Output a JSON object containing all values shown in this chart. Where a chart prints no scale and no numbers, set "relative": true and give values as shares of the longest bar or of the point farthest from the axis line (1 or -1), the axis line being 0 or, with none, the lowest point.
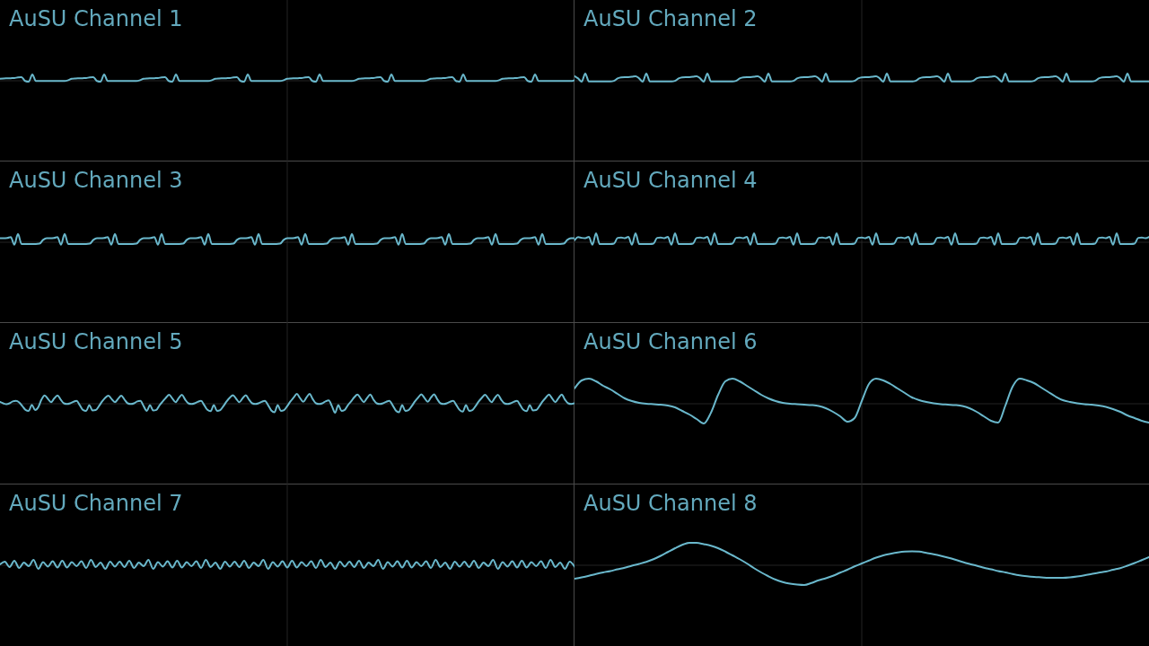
{
  "chart_data": [
    {
      "type": "line",
      "title": "AuSU Channel 1",
      "relative": true,
      "grid": true,
      "color": "#6ab8cc",
      "categories": [
        null,
        null,
        null,
        null,
        null,
        null,
        null,
        null,
        null,
        null,
        null,
        null,
        null,
        null,
        null,
        null,
        null,
        null,
        null,
        null,
        null,
        null,
        null,
        null,
        null,
        null,
        null,
        null,
        null,
        null,
        null,
        null,
        null,
        null,
        null,
        null,
        null,
        null,
        null,
        null,
        null,
        null,
        null,
        null,
        null,
        null,
        null,
        null,
        null,
        null,
        null,
        null,
        null,
        null,
        null,
        null,
        null,
        null,
        null,
        null,
        null,
        null,
        null,
        null,
        null,
        null,
        null,
        null,
        null,
        null,
        null,
        null,
        null,
        null,
        null,
        null,
        null,
        null,
        null,
        null,
        null,
        null,
        null,
        null,
        null,
        null,
        null,
        null,
        null,
        null,
        null,
        null,
        null,
        null,
        null,
        null,
        null,
        null,
        null,
        null,
        null,
        null,
        null,
        null,
        null,
        null,
        null,
        null,
        null,
        null,
        null,
        null,
        null,
        null,
        null,
        null,
        null,
        null,
        null,
        null,
        null,
        null,
        null,
        null,
        null,
        null,
        null,
        null,
        null,
        null,
        null,
        null,
        null,
        null,
        null,
        null,
        null,
        null,
        null,
        null,
        null,
        null,
        null,
        null,
        null,
        null,
        null,
        null,
        null,
        null,
        null,
        null,
        null,
        null,
        null,
        null,
        null,
        null,
        null,
        null,
        null
      ],
      "values": [
        0.4,
        0.44,
        0.46,
        0.48,
        0.5,
        0.6,
        0.62,
        0.1,
        0,
        1,
        0.08,
        0.08,
        0.08,
        0.08,
        0.08,
        0.08,
        0.08,
        0.08,
        0.08,
        0.2,
        0.4,
        0.44,
        0.46,
        0.48,
        0.5,
        0.6,
        0.62,
        0.1,
        0,
        1,
        0.08,
        0.08,
        0.08,
        0.08,
        0.08,
        0.08,
        0.08,
        0.08,
        0.08,
        0.2,
        0.4,
        0.44,
        0.46,
        0.48,
        0.5,
        0.6,
        0.62,
        0.1,
        0,
        1,
        0.08,
        0.08,
        0.08,
        0.08,
        0.08,
        0.08,
        0.08,
        0.08,
        0.08,
        0.2,
        0.4,
        0.44,
        0.46,
        0.48,
        0.5,
        0.6,
        0.62,
        0.1,
        0,
        1,
        0.08,
        0.08,
        0.08,
        0.08,
        0.08,
        0.08,
        0.08,
        0.08,
        0.08,
        0.2,
        0.4,
        0.44,
        0.46,
        0.48,
        0.5,
        0.6,
        0.62,
        0.1,
        0,
        1,
        0.08,
        0.08,
        0.08,
        0.08,
        0.08,
        0.08,
        0.08,
        0.08,
        0.08,
        0.2,
        0.4,
        0.44,
        0.46,
        0.48,
        0.5,
        0.6,
        0.62,
        0.1,
        0,
        1,
        0.08,
        0.08,
        0.08,
        0.08,
        0.08,
        0.08,
        0.08,
        0.08,
        0.08,
        0.2,
        0.4,
        0.44,
        0.46,
        0.48,
        0.5,
        0.6,
        0.62,
        0.1,
        0,
        1,
        0.08,
        0.08,
        0.08,
        0.08,
        0.08,
        0.08,
        0.08,
        0.08,
        0.08,
        0.2,
        0.4,
        0.44,
        0.46,
        0.48,
        0.5,
        0.6,
        0.62,
        0.1,
        0,
        1,
        0.08,
        0.08,
        0.08,
        0.08,
        0.08,
        0.08,
        0.08,
        0.08,
        0.08,
        0.08,
        0.2
      ]
    },
    {
      "type": "line",
      "title": "AuSU Channel 2",
      "relative": true,
      "grid": true,
      "color": "#6ab8cc",
      "categories": [
        null,
        null,
        null,
        null,
        null,
        null,
        null,
        null,
        null,
        null,
        null,
        null,
        null,
        null,
        null,
        null,
        null,
        null,
        null,
        null,
        null,
        null,
        null,
        null,
        null,
        null,
        null,
        null,
        null,
        null,
        null,
        null,
        null,
        null,
        null,
        null,
        null,
        null,
        null,
        null,
        null,
        null,
        null,
        null,
        null,
        null,
        null,
        null,
        null,
        null,
        null,
        null,
        null,
        null,
        null,
        null,
        null,
        null,
        null,
        null,
        null,
        null,
        null,
        null,
        null,
        null,
        null,
        null,
        null,
        null,
        null,
        null,
        null,
        null,
        null,
        null,
        null,
        null,
        null,
        null,
        null,
        null,
        null,
        null,
        null,
        null,
        null,
        null,
        null,
        null,
        null,
        null,
        null,
        null,
        null,
        null,
        null,
        null,
        null,
        null,
        null,
        null,
        null,
        null,
        null,
        null,
        null,
        null,
        null,
        null,
        null,
        null,
        null,
        null,
        null,
        null,
        null,
        null,
        null,
        null,
        null,
        null,
        null,
        null,
        null,
        null,
        null,
        null,
        null,
        null,
        null,
        null,
        null,
        null,
        null,
        null,
        null,
        null,
        null,
        null,
        null,
        null,
        null,
        null,
        null,
        null,
        null,
        null,
        null,
        null,
        null,
        null,
        null,
        null,
        null,
        null,
        null,
        null,
        null,
        null,
        null
      ],
      "values": [
        0.68,
        0.4,
        0,
        1,
        0.02,
        0.02,
        0.02,
        0.02,
        0.02,
        0.02,
        0.02,
        0.1,
        0.4,
        0.54,
        0.56,
        0.56,
        0.6,
        0.68,
        0.4,
        0,
        1,
        0.02,
        0.02,
        0.02,
        0.02,
        0.02,
        0.02,
        0.02,
        0.1,
        0.4,
        0.54,
        0.56,
        0.56,
        0.6,
        0.68,
        0.4,
        0,
        1,
        0.02,
        0.02,
        0.02,
        0.02,
        0.02,
        0.02,
        0.02,
        0.1,
        0.4,
        0.54,
        0.56,
        0.56,
        0.6,
        0.68,
        0.4,
        0,
        1,
        0.02,
        0.02,
        0.02,
        0.02,
        0.02,
        0.02,
        0.1,
        0.4,
        0.54,
        0.56,
        0.56,
        0.6,
        0.68,
        0.4,
        0,
        1,
        0.02,
        0.02,
        0.02,
        0.02,
        0.02,
        0.02,
        0.02,
        0.1,
        0.4,
        0.54,
        0.56,
        0.56,
        0.6,
        0.68,
        0.4,
        0,
        1,
        0.02,
        0.02,
        0.02,
        0.02,
        0.02,
        0.02,
        0.02,
        0.1,
        0.4,
        0.54,
        0.56,
        0.56,
        0.6,
        0.68,
        0.4,
        0,
        1,
        0.02,
        0.02,
        0.02,
        0.02,
        0.02,
        0.02,
        0.1,
        0.4,
        0.54,
        0.56,
        0.56,
        0.6,
        0.68,
        0.4,
        0,
        1,
        0.02,
        0.02,
        0.02,
        0.02,
        0.02,
        0.02,
        0.02,
        0.1,
        0.4,
        0.54,
        0.56,
        0.56,
        0.6,
        0.68,
        0.4,
        0,
        1,
        0.02,
        0.02,
        0.02,
        0.02,
        0.02,
        0.02,
        0.02,
        0.1,
        0.4,
        0.54,
        0.56,
        0.56,
        0.6,
        0.68,
        0.4,
        0,
        1,
        0.02,
        0.02,
        0.02,
        0.02,
        0.02,
        0.02
      ]
    },
    {
      "type": "line",
      "title": "AuSU Channel 3",
      "relative": true,
      "grid": true,
      "color": "#6ab8cc",
      "categories": [
        null,
        null,
        null,
        null,
        null,
        null,
        null,
        null,
        null,
        null,
        null,
        null,
        null,
        null,
        null,
        null,
        null,
        null,
        null,
        null,
        null,
        null,
        null,
        null,
        null,
        null,
        null,
        null,
        null,
        null,
        null,
        null,
        null,
        null,
        null,
        null,
        null,
        null,
        null,
        null,
        null,
        null,
        null,
        null,
        null,
        null,
        null,
        null,
        null,
        null,
        null,
        null,
        null,
        null,
        null,
        null,
        null,
        null,
        null,
        null,
        null,
        null,
        null,
        null,
        null,
        null,
        null,
        null,
        null,
        null,
        null,
        null,
        null,
        null,
        null,
        null,
        null,
        null,
        null,
        null,
        null,
        null,
        null,
        null,
        null,
        null,
        null,
        null,
        null,
        null,
        null,
        null,
        null,
        null,
        null,
        null,
        null,
        null,
        null,
        null,
        null,
        null,
        null,
        null,
        null,
        null,
        null,
        null,
        null,
        null,
        null,
        null,
        null,
        null,
        null,
        null,
        null,
        null,
        null,
        null,
        null,
        null,
        null,
        null,
        null,
        null,
        null,
        null,
        null,
        null,
        null,
        null,
        null,
        null,
        null,
        null,
        null,
        null,
        null,
        null,
        null,
        null,
        null,
        null,
        null,
        null,
        null,
        null,
        null,
        null,
        null,
        null,
        null,
        null,
        null,
        null,
        null,
        null,
        null,
        null,
        null
      ],
      "values": [
        0.6,
        0.6,
        0.62,
        0.72,
        0,
        1,
        0.07,
        0.07,
        0.07,
        0.07,
        0.07,
        0.1,
        0.45,
        0.6,
        0.6,
        0.62,
        0.72,
        0,
        1,
        0.07,
        0.07,
        0.07,
        0.07,
        0.07,
        0.07,
        0.1,
        0.45,
        0.6,
        0.6,
        0.62,
        0.72,
        0,
        1,
        0.07,
        0.07,
        0.07,
        0.07,
        0.07,
        0.1,
        0.45,
        0.6,
        0.6,
        0.62,
        0.72,
        0,
        1,
        0.07,
        0.07,
        0.07,
        0.07,
        0.07,
        0.1,
        0.45,
        0.6,
        0.6,
        0.62,
        0.72,
        0,
        1,
        0.07,
        0.07,
        0.07,
        0.07,
        0.07,
        0.07,
        0.1,
        0.45,
        0.6,
        0.6,
        0.62,
        0.72,
        0,
        1,
        0.07,
        0.07,
        0.07,
        0.07,
        0.07,
        0.1,
        0.45,
        0.6,
        0.6,
        0.62,
        0.72,
        0,
        1,
        0.07,
        0.07,
        0.07,
        0.07,
        0.07,
        0.1,
        0.45,
        0.6,
        0.6,
        0.62,
        0.72,
        0,
        1,
        0.07,
        0.07,
        0.07,
        0.07,
        0.07,
        0.07,
        0.1,
        0.45,
        0.6,
        0.6,
        0.62,
        0.72,
        0,
        1,
        0.07,
        0.07,
        0.07,
        0.07,
        0.07,
        0.1,
        0.45,
        0.6,
        0.6,
        0.62,
        0.72,
        0,
        1,
        0.07,
        0.07,
        0.07,
        0.07,
        0.07,
        0.1,
        0.45,
        0.6,
        0.6,
        0.62,
        0.72,
        0,
        1,
        0.07,
        0.07,
        0.07,
        0.07,
        0.07,
        0.1,
        0.45,
        0.6,
        0.6,
        0.62,
        0.72,
        0,
        1,
        0.07,
        0.07,
        0.07,
        0.07,
        0.07,
        0.1,
        0.45,
        0.6,
        0.6
      ]
    },
    {
      "type": "line",
      "title": "AuSU Channel 4",
      "relative": true,
      "grid": true,
      "color": "#6ab8cc",
      "categories": [
        null,
        null,
        null,
        null,
        null,
        null,
        null,
        null,
        null,
        null,
        null,
        null,
        null,
        null,
        null,
        null,
        null,
        null,
        null,
        null,
        null,
        null,
        null,
        null,
        null,
        null,
        null,
        null,
        null,
        null,
        null,
        null,
        null,
        null,
        null,
        null,
        null,
        null,
        null,
        null,
        null,
        null,
        null,
        null,
        null,
        null,
        null,
        null,
        null,
        null,
        null,
        null,
        null,
        null,
        null,
        null,
        null,
        null,
        null,
        null,
        null,
        null,
        null,
        null,
        null,
        null,
        null,
        null,
        null,
        null,
        null,
        null,
        null,
        null,
        null,
        null,
        null,
        null,
        null,
        null,
        null,
        null,
        null,
        null,
        null,
        null,
        null,
        null,
        null,
        null,
        null,
        null,
        null,
        null,
        null,
        null,
        null,
        null,
        null,
        null,
        null,
        null,
        null,
        null,
        null,
        null,
        null,
        null,
        null,
        null,
        null,
        null,
        null,
        null,
        null,
        null,
        null,
        null,
        null,
        null,
        null,
        null,
        null,
        null,
        null,
        null,
        null,
        null,
        null,
        null,
        null,
        null,
        null,
        null,
        null,
        null,
        null,
        null,
        null,
        null,
        null,
        null,
        null,
        null,
        null,
        null,
        null,
        null,
        null,
        null,
        null,
        null,
        null,
        null,
        null,
        null,
        null,
        null,
        null,
        null,
        null
      ],
      "values": [
        0.38,
        0.66,
        0.6,
        0.58,
        0.68,
        0,
        1,
        0.06,
        0.06,
        0.06,
        0.06,
        0.1,
        0.6,
        0.62,
        0.58,
        0.68,
        0,
        1,
        0.06,
        0.06,
        0.06,
        0.06,
        0.1,
        0.6,
        0.62,
        0.58,
        0.68,
        0,
        1,
        0.06,
        0.06,
        0.06,
        0.06,
        0.1,
        0.6,
        0.62,
        0.58,
        0.68,
        0,
        1,
        0.06,
        0.06,
        0.06,
        0.06,
        0.1,
        0.6,
        0.62,
        0.58,
        0.68,
        0,
        1,
        0.06,
        0.06,
        0.06,
        0.06,
        0.06,
        0.1,
        0.6,
        0.62,
        0.58,
        0.68,
        0,
        1,
        0.06,
        0.06,
        0.06,
        0.06,
        0.1,
        0.6,
        0.62,
        0.58,
        0.68,
        0,
        1,
        0.06,
        0.06,
        0.06,
        0.06,
        0.1,
        0.6,
        0.62,
        0.58,
        0.68,
        0,
        1,
        0.06,
        0.06,
        0.06,
        0.06,
        0.1,
        0.6,
        0.62,
        0.58,
        0.68,
        0,
        1,
        0.06,
        0.06,
        0.06,
        0.06,
        0.1,
        0.6,
        0.62,
        0.58,
        0.68,
        0,
        1,
        0.06,
        0.06,
        0.06,
        0.06,
        0.06,
        0.1,
        0.6,
        0.62,
        0.58,
        0.68,
        0,
        1,
        0.06,
        0.06,
        0.06,
        0.06,
        0.1,
        0.6,
        0.62,
        0.58,
        0.68,
        0,
        1,
        0.06,
        0.06,
        0.06,
        0.06,
        0.1,
        0.6,
        0.62,
        0.58,
        0.68,
        0,
        1,
        0.06,
        0.06,
        0.06,
        0.06,
        0.1,
        0.6,
        0.62,
        0.58,
        0.68,
        0,
        1,
        0.06,
        0.06,
        0.06,
        0.06,
        0.1,
        0.6,
        0.62,
        0.58,
        0.68
      ]
    },
    {
      "type": "line",
      "title": "AuSU Channel 5",
      "relative": true,
      "grid": true,
      "color": "#6ab8cc",
      "categories": [
        null,
        null,
        null,
        null,
        null,
        null,
        null,
        null,
        null,
        null,
        null,
        null,
        null,
        null,
        null,
        null,
        null,
        null,
        null,
        null,
        null,
        null,
        null,
        null,
        null,
        null,
        null,
        null,
        null,
        null,
        null,
        null,
        null,
        null,
        null,
        null,
        null,
        null,
        null,
        null,
        null,
        null,
        null,
        null,
        null,
        null,
        null,
        null,
        null,
        null,
        null,
        null,
        null,
        null,
        null,
        null,
        null,
        null,
        null,
        null,
        null,
        null,
        null,
        null,
        null,
        null,
        null,
        null,
        null,
        null,
        null,
        null,
        null,
        null,
        null,
        null,
        null,
        null,
        null,
        null,
        null,
        null,
        null,
        null,
        null,
        null,
        null,
        null,
        null,
        null,
        null,
        null,
        null,
        null,
        null,
        null,
        null,
        null,
        null,
        null,
        null,
        null,
        null,
        null,
        null,
        null,
        null,
        null,
        null,
        null,
        null,
        null,
        null,
        null,
        null,
        null,
        null,
        null,
        null,
        null,
        null,
        null,
        null,
        null,
        null,
        null,
        null,
        null,
        null,
        null,
        null,
        null,
        null,
        null,
        null,
        null,
        null,
        null,
        null,
        null,
        null,
        null,
        null,
        null,
        null,
        null,
        null,
        null,
        null,
        null,
        null,
        null,
        null,
        null,
        null,
        null,
        null,
        null,
        null,
        null,
        null,
        null,
        null,
        null,
        null,
        null,
        null,
        null,
        null,
        null,
        null,
        null,
        null,
        null,
        null,
        null,
        null,
        null,
        null,
        null,
        null
      ],
      "values": [
        0.57,
        0.5,
        0.45,
        0.5,
        0.6,
        0.63,
        0.55,
        0.35,
        0.15,
        0.1,
        0.42,
        0.14,
        0.3,
        0.7,
        0.92,
        0.74,
        0.56,
        0.76,
        0.92,
        0.7,
        0.5,
        0.46,
        0.5,
        0.58,
        0.63,
        0.4,
        0.15,
        0.1,
        0.4,
        0.12,
        0.14,
        0.35,
        0.6,
        0.8,
        0.9,
        0.72,
        0.56,
        0.74,
        0.9,
        0.7,
        0.5,
        0.46,
        0.5,
        0.6,
        0.63,
        0.35,
        0.1,
        0.4,
        0.12,
        0.15,
        0.4,
        0.6,
        0.8,
        0.95,
        0.76,
        0.56,
        0.78,
        0.95,
        0.7,
        0.5,
        0.46,
        0.5,
        0.58,
        0.63,
        0.4,
        0.15,
        0.08,
        0.4,
        0.1,
        0.14,
        0.35,
        0.6,
        0.8,
        0.93,
        0.74,
        0.56,
        0.76,
        0.93,
        0.7,
        0.5,
        0.46,
        0.5,
        0.58,
        0.63,
        0.4,
        0.12,
        0.02,
        0.4,
        0.1,
        0.14,
        0.35,
        0.6,
        0.8,
        1,
        0.78,
        0.58,
        0.8,
        1,
        0.72,
        0.5,
        0.46,
        0.5,
        0.6,
        0.65,
        0.35,
        0,
        0.4,
        0.1,
        0.15,
        0.4,
        0.6,
        0.82,
        0.96,
        0.76,
        0.56,
        0.78,
        0.96,
        0.7,
        0.5,
        0.46,
        0.5,
        0.58,
        0.63,
        0.4,
        0.12,
        0.02,
        0.4,
        0.1,
        0.14,
        0.35,
        0.6,
        0.8,
        0.98,
        0.78,
        0.58,
        0.8,
        0.98,
        0.72,
        0.5,
        0.46,
        0.5,
        0.58,
        0.63,
        0.4,
        0.15,
        0.06,
        0.4,
        0.1,
        0.14,
        0.35,
        0.6,
        0.8,
        0.95,
        0.76,
        0.56,
        0.78,
        0.95,
        0.7,
        0.5,
        0.46,
        0.5,
        0.58,
        0.63,
        0.4,
        0.15,
        0.08,
        0.4,
        0.12,
        0.14,
        0.35,
        0.6,
        0.8,
        0.97,
        0.76,
        0.56,
        0.78,
        0.97,
        0.7,
        0.5,
        0.46,
        0.5
      ]
    },
    {
      "type": "line",
      "title": "AuSU Channel 6",
      "relative": true,
      "grid": true,
      "color": "#6ab8cc",
      "categories": [
        null,
        null,
        null,
        null,
        null,
        null,
        null,
        null,
        null,
        null,
        null,
        null,
        null,
        null,
        null,
        null,
        null,
        null,
        null,
        null,
        null,
        null,
        null,
        null,
        null,
        null,
        null,
        null,
        null,
        null,
        null,
        null,
        null,
        null,
        null,
        null,
        null,
        null,
        null,
        null,
        null,
        null,
        null,
        null,
        null,
        null,
        null,
        null,
        null,
        null,
        null,
        null,
        null,
        null,
        null,
        null,
        null,
        null,
        null,
        null,
        null,
        null,
        null,
        null,
        null,
        null,
        null,
        null,
        null,
        null,
        null,
        null,
        null,
        null,
        null,
        null,
        null,
        null,
        null,
        null,
        null
      ],
      "values": [
        0.78,
        0.96,
        1,
        0.94,
        0.84,
        0.76,
        0.66,
        0.56,
        0.5,
        0.46,
        0.44,
        0.43,
        0.42,
        0.4,
        0.36,
        0.28,
        0.2,
        0.1,
        0,
        0.24,
        0.64,
        0.94,
        1,
        0.94,
        0.84,
        0.74,
        0.64,
        0.56,
        0.5,
        0.46,
        0.44,
        0.43,
        0.42,
        0.41,
        0.39,
        0.34,
        0.26,
        0.16,
        0.04,
        0.12,
        0.5,
        0.88,
        1,
        0.96,
        0.88,
        0.78,
        0.68,
        0.58,
        0.52,
        0.48,
        0.45,
        0.43,
        0.42,
        0.41,
        0.39,
        0.34,
        0.26,
        0.16,
        0.06,
        0.02,
        0.4,
        0.82,
        1,
        0.96,
        0.9,
        0.8,
        0.7,
        0.6,
        0.52,
        0.48,
        0.45,
        0.43,
        0.42,
        0.4,
        0.37,
        0.32,
        0.26,
        0.18,
        0.12,
        0.06,
        0.02
      ]
    },
    {
      "type": "line",
      "title": "AuSU Channel 7",
      "relative": true,
      "grid": true,
      "color": "#6ab8cc",
      "categories": [
        null,
        null,
        null,
        null,
        null,
        null,
        null,
        null,
        null,
        null,
        null,
        null,
        null,
        null,
        null,
        null,
        null,
        null,
        null,
        null,
        null,
        null,
        null,
        null,
        null,
        null,
        null,
        null,
        null,
        null,
        null,
        null,
        null,
        null,
        null,
        null,
        null,
        null,
        null,
        null,
        null,
        null,
        null,
        null,
        null,
        null,
        null,
        null,
        null,
        null,
        null,
        null,
        null,
        null,
        null,
        null,
        null,
        null,
        null,
        null,
        null,
        null,
        null,
        null,
        null,
        null,
        null,
        null,
        null,
        null,
        null,
        null,
        null,
        null,
        null,
        null,
        null,
        null,
        null,
        null,
        null,
        null,
        null,
        null,
        null,
        null,
        null,
        null,
        null,
        null,
        null,
        null,
        null,
        null,
        null,
        null,
        null,
        null,
        null,
        null,
        null,
        null,
        null,
        null,
        null,
        null,
        null,
        null,
        null,
        null,
        null,
        null,
        null,
        null,
        null,
        null,
        null,
        null,
        null,
        null,
        null
      ],
      "values": [
        0.5,
        0.8,
        0.2,
        0.9,
        0.1,
        0.7,
        0.3,
        1,
        0,
        0.75,
        0.25,
        0.85,
        0.15,
        0.9,
        0.15,
        0.75,
        0.3,
        0.85,
        0.1,
        1,
        0.2,
        0.7,
        0,
        0.8,
        0.25,
        0.8,
        0.2,
        0.9,
        0.1,
        0.7,
        0.3,
        1,
        0,
        0.75,
        0.25,
        0.85,
        0.15,
        0.9,
        0.15,
        0.75,
        0.3,
        0.85,
        0.1,
        1,
        0.2,
        0.7,
        0,
        0.8,
        0.25,
        0.8,
        0.2,
        0.9,
        0.1,
        0.7,
        0.3,
        1,
        0,
        0.75,
        0.25,
        0.85,
        0.15,
        0.9,
        0.15,
        0.75,
        0.3,
        0.85,
        0.1,
        1,
        0.2,
        0.7,
        0,
        0.8,
        0.25,
        0.8,
        0.2,
        0.9,
        0.1,
        0.7,
        0.3,
        1,
        0,
        0.75,
        0.25,
        0.85,
        0.15,
        0.9,
        0.15,
        0.75,
        0.3,
        0.85,
        0.1,
        1,
        0.2,
        0.7,
        0,
        0.8,
        0.25,
        0.8,
        0.2,
        0.9,
        0.1,
        0.7,
        0.3,
        1,
        0,
        0.75,
        0.25,
        0.85,
        0.15,
        0.9,
        0.15,
        0.75,
        0.3,
        0.85,
        0.1,
        1,
        0.2,
        0.7,
        0,
        0.8,
        0.25
      ]
    },
    {
      "type": "line",
      "title": "AuSU Channel 8",
      "relative": true,
      "grid": true,
      "color": "#6ab8cc",
      "categories": [
        null,
        null,
        null,
        null,
        null,
        null,
        null,
        null,
        null,
        null,
        null,
        null,
        null,
        null,
        null,
        null,
        null,
        null,
        null,
        null,
        null,
        null,
        null,
        null,
        null,
        null,
        null,
        null,
        null,
        null,
        null,
        null,
        null,
        null,
        null,
        null,
        null,
        null,
        null,
        null,
        null,
        null,
        null,
        null,
        null,
        null,
        null,
        null,
        null,
        null,
        null,
        null,
        null,
        null,
        null,
        null,
        null,
        null,
        null,
        null,
        null,
        null,
        null,
        null,
        null,
        null,
        null,
        null,
        null,
        null,
        null,
        null,
        null,
        null,
        null,
        null,
        null,
        null,
        null,
        null,
        null
      ],
      "values": [
        -0.6,
        -0.54,
        -0.47,
        -0.39,
        -0.32,
        -0.26,
        -0.18,
        -0.11,
        -0.02,
        0.06,
        0.15,
        0.27,
        0.42,
        0.59,
        0.76,
        0.91,
        1,
        1,
        0.94,
        0.87,
        0.76,
        0.61,
        0.44,
        0.27,
        0.08,
        -0.13,
        -0.32,
        -0.49,
        -0.64,
        -0.75,
        -0.82,
        -0.86,
        -0.88,
        -0.79,
        -0.67,
        -0.58,
        -0.47,
        -0.33,
        -0.2,
        -0.05,
        0.08,
        0.21,
        0.34,
        0.44,
        0.51,
        0.57,
        0.61,
        0.62,
        0.61,
        0.55,
        0.49,
        0.42,
        0.34,
        0.25,
        0.15,
        0.06,
        -0.02,
        -0.11,
        -0.18,
        -0.26,
        -0.32,
        -0.39,
        -0.45,
        -0.49,
        -0.52,
        -0.54,
        -0.56,
        -0.56,
        -0.56,
        -0.54,
        -0.5,
        -0.45,
        -0.39,
        -0.33,
        -0.28,
        -0.2,
        -0.13,
        -0.02,
        0.1,
        0.23,
        0.36
      ]
    }
  ]
}
